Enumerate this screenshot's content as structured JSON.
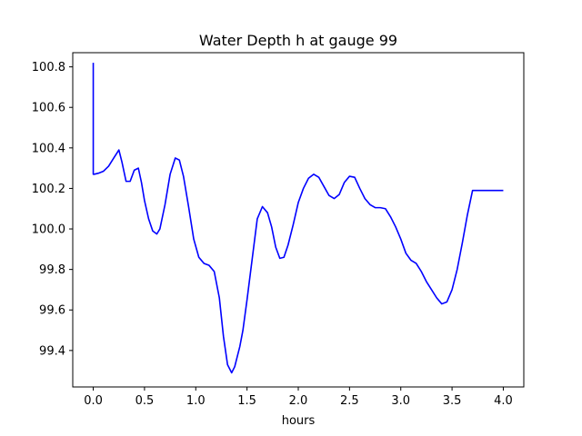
{
  "chart_data": {
    "type": "line",
    "title": "Water Depth h at gauge 99",
    "xlabel": "hours",
    "ylabel": "",
    "xlim": [
      -0.2,
      4.2
    ],
    "ylim": [
      99.22,
      100.87
    ],
    "grid": false,
    "xticks": [
      0.0,
      0.5,
      1.0,
      1.5,
      2.0,
      2.5,
      3.0,
      3.5,
      4.0
    ],
    "xtick_labels": [
      "0.0",
      "0.5",
      "1.0",
      "1.5",
      "2.0",
      "2.5",
      "3.0",
      "3.5",
      "4.0"
    ],
    "yticks": [
      99.4,
      99.6,
      99.8,
      100.0,
      100.2,
      100.4,
      100.6,
      100.8
    ],
    "ytick_labels": [
      "99.4",
      "99.6",
      "99.8",
      "100.0",
      "100.2",
      "100.4",
      "100.6",
      "100.8"
    ],
    "series": [
      {
        "color": "#0000ff",
        "x": [
          0.0,
          0.0,
          0.01,
          0.05,
          0.1,
          0.15,
          0.2,
          0.25,
          0.28,
          0.32,
          0.36,
          0.4,
          0.44,
          0.47,
          0.5,
          0.54,
          0.58,
          0.62,
          0.65,
          0.7,
          0.75,
          0.8,
          0.84,
          0.88,
          0.93,
          0.98,
          1.03,
          1.08,
          1.13,
          1.18,
          1.23,
          1.27,
          1.31,
          1.35,
          1.38,
          1.41,
          1.43,
          1.46,
          1.5,
          1.55,
          1.6,
          1.65,
          1.7,
          1.74,
          1.78,
          1.82,
          1.86,
          1.9,
          1.95,
          2.0,
          2.05,
          2.1,
          2.15,
          2.2,
          2.25,
          2.3,
          2.35,
          2.4,
          2.45,
          2.5,
          2.55,
          2.6,
          2.65,
          2.7,
          2.75,
          2.8,
          2.85,
          2.9,
          2.95,
          3.0,
          3.05,
          3.1,
          3.15,
          3.2,
          3.25,
          3.3,
          3.35,
          3.4,
          3.45,
          3.5,
          3.55,
          3.6,
          3.65,
          3.7,
          3.75,
          3.8,
          3.85,
          3.9,
          3.95,
          4.0
        ],
        "y": [
          100.82,
          100.27,
          100.27,
          100.275,
          100.285,
          100.31,
          100.35,
          100.39,
          100.33,
          100.235,
          100.235,
          100.29,
          100.3,
          100.23,
          100.14,
          100.05,
          99.99,
          99.975,
          100.0,
          100.12,
          100.27,
          100.35,
          100.34,
          100.26,
          100.11,
          99.95,
          99.86,
          99.83,
          99.82,
          99.79,
          99.66,
          99.47,
          99.33,
          99.29,
          99.32,
          99.38,
          99.42,
          99.5,
          99.65,
          99.85,
          100.05,
          100.11,
          100.08,
          100.01,
          99.91,
          99.855,
          99.86,
          99.92,
          100.02,
          100.13,
          100.2,
          100.25,
          100.27,
          100.255,
          100.21,
          100.165,
          100.15,
          100.17,
          100.23,
          100.26,
          100.255,
          100.2,
          100.15,
          100.12,
          100.105,
          100.105,
          100.1,
          100.06,
          100.01,
          99.95,
          99.88,
          99.845,
          99.83,
          99.79,
          99.74,
          99.7,
          99.66,
          99.63,
          99.64,
          99.7,
          99.8,
          99.93,
          100.07,
          100.19,
          100.19,
          100.19,
          100.19,
          100.19,
          100.19,
          100.19
        ]
      }
    ]
  }
}
